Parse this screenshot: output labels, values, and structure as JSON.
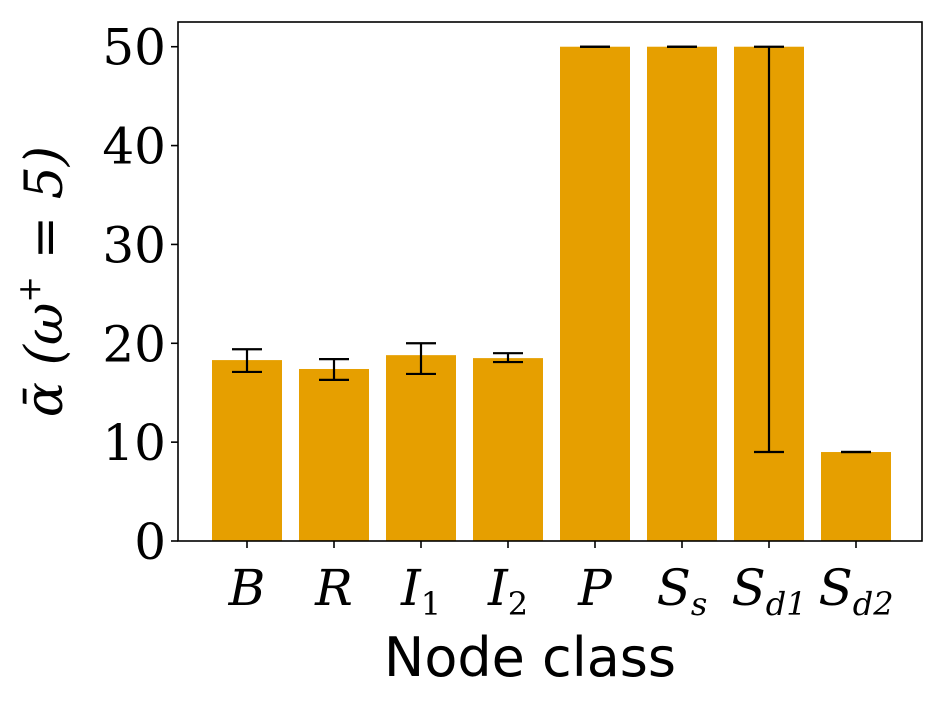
{
  "chart_data": {
    "type": "bar",
    "title": "",
    "xlabel": "Node class",
    "ylabel": "ᾱ (ω⁺ = 5)",
    "ylabel_parts": {
      "main": "ᾱ (ω",
      "sup": "+",
      "tail": " = 5)"
    },
    "ylim": [
      0,
      52.5
    ],
    "yticks": [
      0,
      10,
      20,
      30,
      40,
      50
    ],
    "grid": false,
    "bar_color": "#E69F00",
    "categories": [
      {
        "base": "B",
        "sub": ""
      },
      {
        "base": "R",
        "sub": ""
      },
      {
        "base": "I",
        "sub": "1"
      },
      {
        "base": "I",
        "sub": "2"
      },
      {
        "base": "P",
        "sub": ""
      },
      {
        "base": "S",
        "sub": "s"
      },
      {
        "base": "S",
        "sub": "d1"
      },
      {
        "base": "S",
        "sub": "d2"
      }
    ],
    "values": [
      18.3,
      17.4,
      18.8,
      18.5,
      50,
      50,
      50,
      9
    ],
    "error_low": [
      17.1,
      16.3,
      16.9,
      18.1,
      50,
      50,
      9,
      9
    ],
    "error_high": [
      19.4,
      18.4,
      20.0,
      19.0,
      50,
      50,
      50,
      9
    ]
  }
}
